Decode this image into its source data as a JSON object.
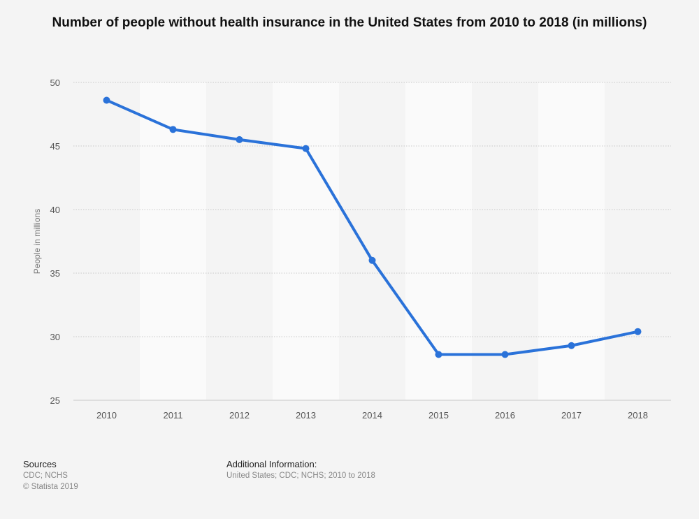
{
  "chart_data": {
    "type": "line",
    "title": "Number of people without health insurance in the United States from 2010 to 2018 (in millions)",
    "xlabel": "",
    "ylabel": "People in millions",
    "categories": [
      "2010",
      "2011",
      "2012",
      "2013",
      "2014",
      "2015",
      "2016",
      "2017",
      "2018"
    ],
    "series": [
      {
        "name": "People without health insurance",
        "values": [
          48.6,
          46.3,
          45.5,
          44.8,
          36.0,
          28.6,
          28.6,
          29.3,
          30.4
        ]
      }
    ],
    "yticks": [
      "25",
      "30",
      "35",
      "40",
      "45",
      "50"
    ],
    "ylim": [
      25,
      50
    ],
    "grid": true,
    "legend": "none"
  },
  "colors": {
    "line": "#2a72d9",
    "grid": "#c8c8c8",
    "band": "#fafafa",
    "background": "#f4f4f4"
  },
  "footer": {
    "sources_heading": "Sources",
    "sources_line1": "CDC; NCHS",
    "sources_line2": "© Statista 2019",
    "additional_heading": "Additional Information:",
    "additional_text": "United States; CDC; NCHS; 2010 to 2018"
  }
}
